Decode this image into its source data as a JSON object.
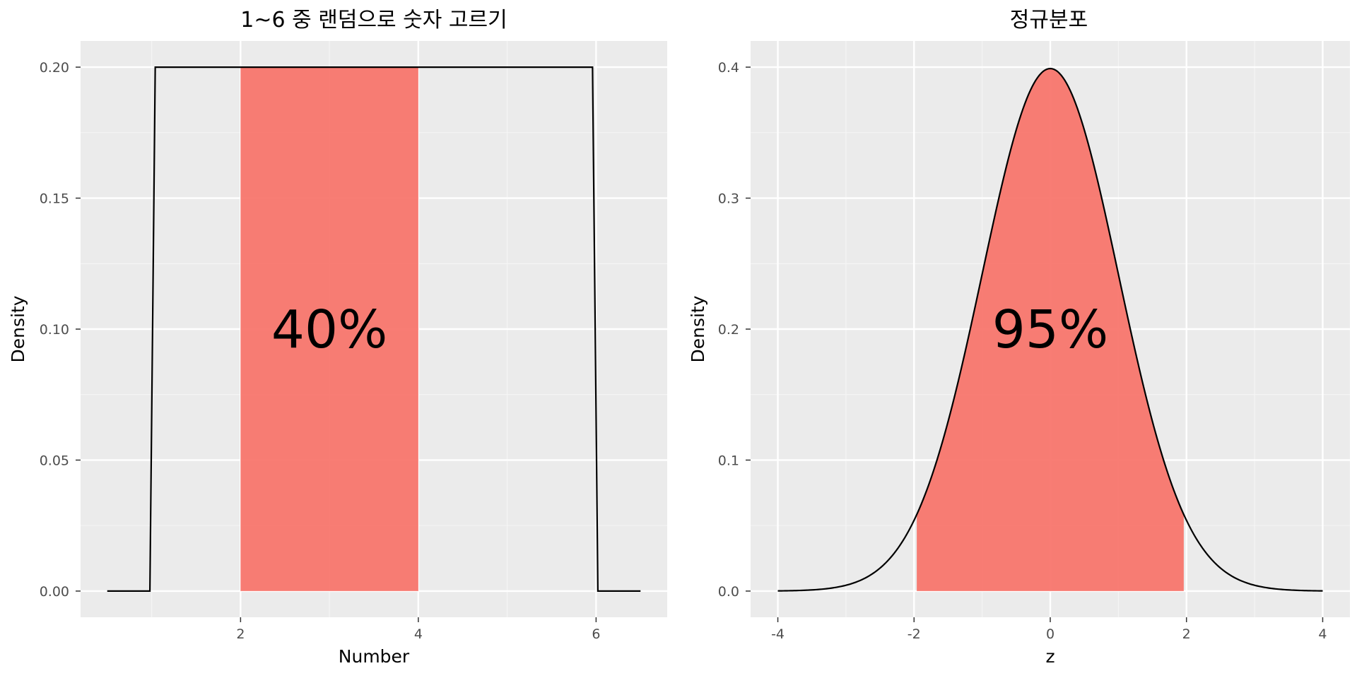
{
  "chart_data": [
    {
      "type": "area",
      "title": "1~6 중 랜덤으로 숫자 고르기",
      "xlabel": "Number",
      "ylabel": "Density",
      "xlim": [
        0.5,
        6.5
      ],
      "ylim": [
        0,
        0.2
      ],
      "x_ticks": [
        2,
        4,
        6
      ],
      "x_tick_labels": [
        "2",
        "4",
        "6"
      ],
      "y_ticks": [
        0,
        0.05,
        0.1,
        0.15,
        0.2
      ],
      "y_tick_labels": [
        "0.00",
        "0.05",
        "0.10",
        "0.15",
        "0.20"
      ],
      "grid": true,
      "series": [
        {
          "x": [
            0.5,
            0.98,
            1.04,
            5.96,
            6.02,
            6.5
          ],
          "y": [
            0,
            0,
            0.2,
            0.2,
            0,
            0
          ]
        }
      ],
      "shaded_region": {
        "x_from": 2,
        "x_to": 4,
        "color": "#F8766D"
      },
      "annotation": {
        "text": "40%",
        "x": 3,
        "y": 0.1
      }
    },
    {
      "type": "area",
      "title": "정규분포",
      "xlabel": "z",
      "ylabel": "Density",
      "xlim": [
        -4,
        4
      ],
      "ylim": [
        0,
        0.4
      ],
      "x_ticks": [
        -4,
        -2,
        0,
        2,
        4
      ],
      "x_tick_labels": [
        "-4",
        "-2",
        "0",
        "2",
        "4"
      ],
      "y_ticks": [
        0,
        0.1,
        0.2,
        0.3,
        0.4
      ],
      "y_tick_labels": [
        "0.0",
        "0.1",
        "0.2",
        "0.3",
        "0.4"
      ],
      "grid": true,
      "series": [
        {
          "function": "normal_pdf",
          "mean": 0,
          "sd": 1
        }
      ],
      "shaded_region": {
        "x_from": -1.96,
        "x_to": 1.96,
        "color": "#F8766D"
      },
      "annotation": {
        "text": "95%",
        "x": 0,
        "y": 0.2
      }
    }
  ]
}
